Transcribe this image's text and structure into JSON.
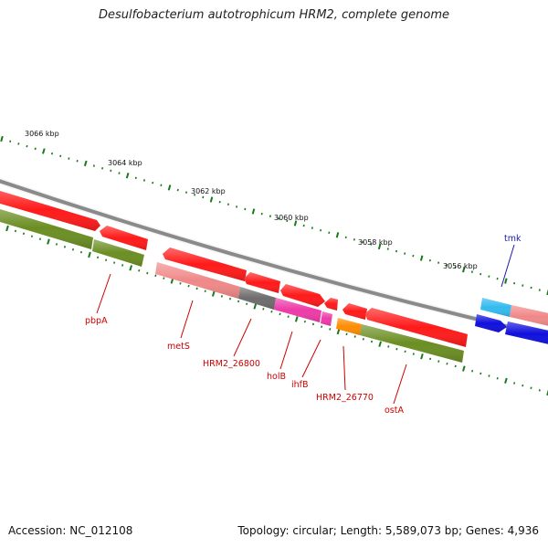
{
  "title": "Desulfobacterium autotrophicum HRM2, complete genome",
  "accession": "Accession: NC_012108",
  "summary": "Topology: circular; Length: 5,589,073 bp; Genes: 4,936",
  "scale_labels": [
    "3066 kbp",
    "3064 kbp",
    "3062 kbp",
    "3060 kbp",
    "3058 kbp",
    "3056 kbp"
  ],
  "genes": [
    {
      "name": "pbpA"
    },
    {
      "name": "metS"
    },
    {
      "name": "HRM2_26800"
    },
    {
      "name": "holB"
    },
    {
      "name": "ihfB"
    },
    {
      "name": "HRM2_26770"
    },
    {
      "name": "ostA"
    },
    {
      "name": "tmk"
    }
  ],
  "colors": {
    "cds_red": "#ff1a1a",
    "cds_pink": "#f08888",
    "cds_olive": "#6b8e23",
    "cds_gray": "#6d6d6d",
    "cds_magenta": "#ee3aa8",
    "cds_orange": "#ff8c00",
    "cds_cyan": "#33bbee",
    "cds_blue": "#1010dd",
    "backbone": "#888888",
    "tick_green": "#1a7a1a",
    "label_red": "#cc0000",
    "label_blue": "#1a1aa6"
  }
}
